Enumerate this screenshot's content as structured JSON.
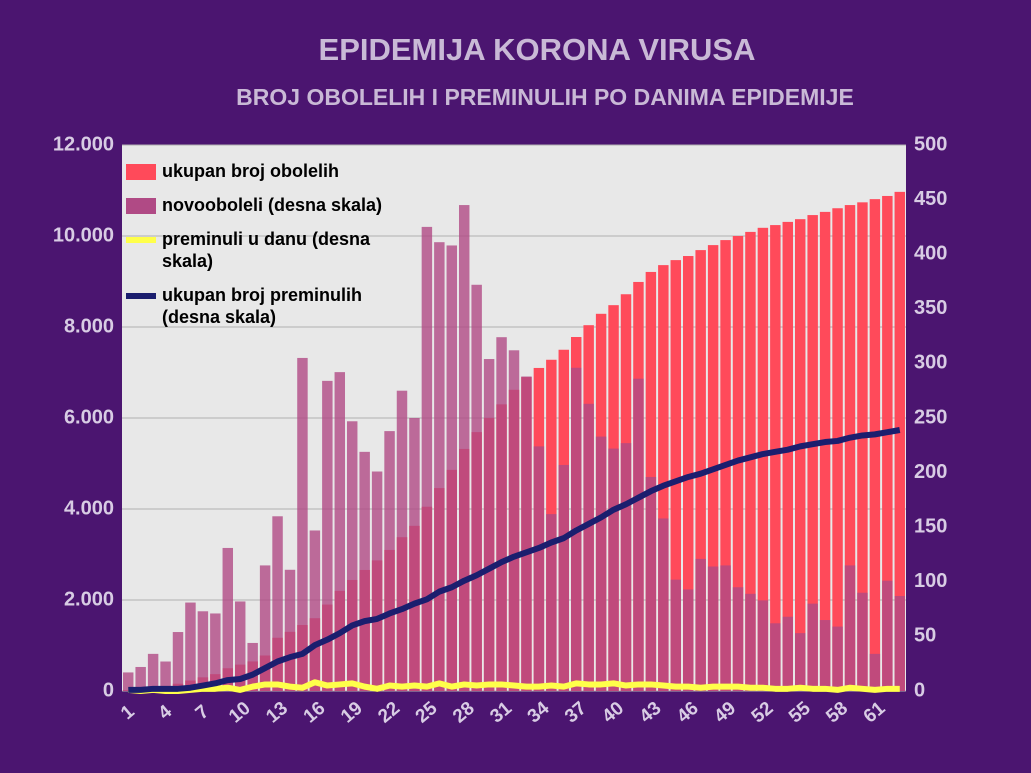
{
  "chart_data": {
    "type": "bar-line",
    "title": "EPIDEMIJA KORONA VIRUSA",
    "subtitle": "BROJ OBOLELIH I PREMINULIH PO DANIMA EPIDEMIJE",
    "categories": [
      "1",
      null,
      null,
      "4",
      null,
      null,
      "7",
      null,
      null,
      "10",
      null,
      null,
      "13",
      null,
      null,
      "16",
      null,
      null,
      "19",
      null,
      null,
      "22",
      null,
      null,
      "25",
      null,
      null,
      "28",
      null,
      null,
      "31",
      null,
      null,
      "34",
      null,
      null,
      "37",
      null,
      null,
      "40",
      null,
      null,
      "43",
      null,
      null,
      "46",
      null,
      null,
      "49",
      null,
      null,
      "52",
      null,
      null,
      "55",
      null,
      null,
      "58",
      null,
      null,
      "61",
      null,
      null
    ],
    "series": [
      {
        "name": "ukupan broj obolelih",
        "color": "#ff4a5a",
        "kind": "bar",
        "axis": "y",
        "values": [
          20,
          50,
          80,
          110,
          160,
          230,
          300,
          370,
          500,
          580,
          650,
          780,
          1170,
          1300,
          1450,
          1600,
          1900,
          2200,
          2440,
          2660,
          2870,
          3100,
          3380,
          3630,
          4050,
          4460,
          4860,
          5320,
          5690,
          6000,
          6300,
          6620,
          6900,
          7100,
          7280,
          7500,
          7780,
          8040,
          8290,
          8480,
          8720,
          8990,
          9210,
          9360,
          9470,
          9560,
          9690,
          9800,
          9910,
          10000,
          10090,
          10180,
          10240,
          10310,
          10370,
          10460,
          10530,
          10610,
          10680,
          10740,
          10810,
          10880,
          10970
        ]
      },
      {
        "name": "novooboleli (desna skala)",
        "color": "#b04a85",
        "kind": "bar",
        "axis": "y2",
        "values": [
          17,
          22,
          34,
          27,
          54,
          81,
          73,
          71,
          131,
          82,
          44,
          115,
          160,
          111,
          305,
          147,
          284,
          292,
          247,
          219,
          201,
          238,
          275,
          250,
          425,
          411,
          408,
          445,
          372,
          304,
          324,
          312,
          288,
          224,
          162,
          207,
          296,
          263,
          233,
          222,
          227,
          286,
          196,
          158,
          102,
          93,
          121,
          114,
          115,
          95,
          89,
          83,
          62,
          68,
          53,
          80,
          65,
          59,
          115,
          90,
          34,
          101,
          87
        ]
      },
      {
        "name": "preminuli u danu (desna skala)",
        "color": "#ffff4a",
        "kind": "line",
        "axis": "y2",
        "values": [
          1,
          0,
          1,
          0,
          0,
          1,
          2,
          2,
          3,
          1,
          4,
          6,
          6,
          4,
          3,
          8,
          5,
          6,
          7,
          4,
          2,
          5,
          4,
          5,
          4,
          7,
          4,
          6,
          5,
          6,
          6,
          5,
          4,
          4,
          5,
          4,
          7,
          6,
          6,
          7,
          5,
          6,
          6,
          5,
          4,
          4,
          3,
          4,
          4,
          4,
          3,
          3,
          2,
          2,
          3,
          2,
          2,
          1,
          3,
          2,
          1,
          2,
          2
        ]
      },
      {
        "name": "ukupan broj preminulih (desna skala)",
        "color": "#1b1e6e",
        "kind": "line",
        "axis": "y2",
        "values": [
          1,
          1,
          2,
          2,
          2,
          3,
          5,
          7,
          10,
          11,
          15,
          21,
          27,
          31,
          34,
          42,
          47,
          53,
          60,
          64,
          66,
          71,
          75,
          80,
          84,
          91,
          95,
          101,
          106,
          112,
          118,
          123,
          127,
          131,
          136,
          140,
          147,
          153,
          159,
          166,
          171,
          177,
          183,
          188,
          192,
          196,
          199,
          203,
          207,
          211,
          214,
          217,
          219,
          221,
          224,
          226,
          228,
          229,
          232,
          234,
          235,
          237,
          239
        ]
      }
    ],
    "ylim": [
      0,
      12000
    ],
    "yticks": [
      0,
      {
        "value": 2000,
        "label": "2.000"
      },
      {
        "value": 4000,
        "label": "4.000"
      },
      {
        "value": 6000,
        "label": "6.000"
      },
      {
        "value": 8000,
        "label": "8.000"
      },
      {
        "value": 10000,
        "label": "10.000"
      },
      {
        "value": 12000,
        "label": "12.000"
      }
    ],
    "y2lim": [
      0,
      500
    ],
    "y2ticks": [
      0,
      50,
      100,
      150,
      200,
      250,
      300,
      350,
      400,
      450,
      500
    ],
    "grid": true,
    "legend": "top-left"
  }
}
